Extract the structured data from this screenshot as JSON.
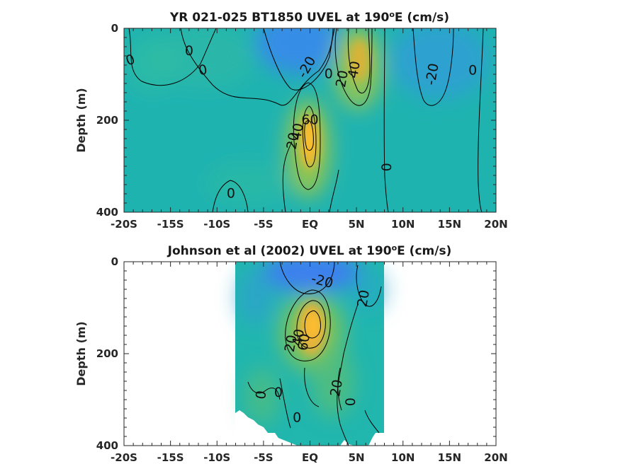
{
  "chart_data": [
    {
      "type": "heatmap",
      "title_pre": "YR 021-025 BT1850 UVEL at 190",
      "title_sup": "o",
      "title_post": "E (cm/s)",
      "xlabel": "",
      "ylabel": "Depth (m)",
      "xlim": [
        -20,
        20
      ],
      "ylim": [
        0,
        400
      ],
      "y_reversed": true,
      "x_ticks": [
        -20,
        -15,
        -10,
        -5,
        0,
        5,
        10,
        15,
        20
      ],
      "x_tick_labels": [
        "-20S",
        "-15S",
        "-10S",
        "-5S",
        "EQ",
        "5N",
        "10N",
        "15N",
        "20N"
      ],
      "y_ticks": [
        0,
        200,
        400
      ],
      "y_tick_labels": [
        "0",
        "200",
        "400"
      ],
      "features": [
        {
          "kind": "jet",
          "lat": 0,
          "depth": 200,
          "value": 65
        },
        {
          "kind": "jet",
          "lat": 5.5,
          "depth": 80,
          "value": 45
        },
        {
          "kind": "westward",
          "lat": 0,
          "depth": 20,
          "value": -30
        },
        {
          "kind": "westward",
          "lat": 12,
          "depth": 80,
          "value": -20
        }
      ],
      "contour_labels": [
        {
          "text": "0",
          "lat": -19.3,
          "depth": 70,
          "rot": -20
        },
        {
          "text": "0",
          "lat": -13,
          "depth": 50,
          "rot": 0
        },
        {
          "text": "0",
          "lat": -11.5,
          "depth": 92,
          "rot": -10
        },
        {
          "text": "-20",
          "lat": -0.3,
          "depth": 85,
          "rot": -60
        },
        {
          "text": "0",
          "lat": 2,
          "depth": 100,
          "rot": 0
        },
        {
          "text": "20",
          "lat": 3.5,
          "depth": 110,
          "rot": -80
        },
        {
          "text": "40",
          "lat": 4.8,
          "depth": 90,
          "rot": -80
        },
        {
          "text": "60",
          "lat": 0,
          "depth": 200,
          "rot": 0
        },
        {
          "text": "40",
          "lat": -1.3,
          "depth": 225,
          "rot": -80
        },
        {
          "text": "20",
          "lat": -1.8,
          "depth": 245,
          "rot": -80
        },
        {
          "text": "-20",
          "lat": 13.2,
          "depth": 100,
          "rot": -80
        },
        {
          "text": "0",
          "lat": 17.5,
          "depth": 92,
          "rot": 0
        },
        {
          "text": "0",
          "lat": 8.3,
          "depth": 302,
          "rot": -90
        },
        {
          "text": "0",
          "lat": -8.5,
          "depth": 360,
          "rot": 0
        }
      ]
    },
    {
      "type": "heatmap",
      "title_pre": "Johnson et al (2002) UVEL at 190",
      "title_sup": "o",
      "title_post": "E (cm/s)",
      "xlabel": "",
      "ylabel": "Depth (m)",
      "xlim": [
        -20,
        20
      ],
      "ylim": [
        0,
        400
      ],
      "y_reversed": true,
      "data_lat_range": [
        -8,
        8
      ],
      "x_ticks": [
        -20,
        -15,
        -10,
        -5,
        0,
        5,
        10,
        15,
        20
      ],
      "x_tick_labels": [
        "-20S",
        "-15S",
        "-10S",
        "-5S",
        "EQ",
        "5N",
        "10N",
        "15N",
        "20N"
      ],
      "y_ticks": [
        0,
        200,
        400
      ],
      "y_tick_labels": [
        "0",
        "200",
        "400"
      ],
      "features": [
        {
          "kind": "jet",
          "lat": 0.3,
          "depth": 150,
          "value": 75
        },
        {
          "kind": "westward",
          "lat": 0.5,
          "depth": 30,
          "value": -35
        }
      ],
      "contour_labels": [
        {
          "text": "-20",
          "lat": 1.3,
          "depth": 43,
          "rot": 15
        },
        {
          "text": "20",
          "lat": 5.8,
          "depth": 80,
          "rot": -80
        },
        {
          "text": "20",
          "lat": -2,
          "depth": 178,
          "rot": -80
        },
        {
          "text": "40",
          "lat": -1.2,
          "depth": 165,
          "rot": -80
        },
        {
          "text": "60",
          "lat": -0.6,
          "depth": 175,
          "rot": -80
        },
        {
          "text": "20",
          "lat": 2.9,
          "depth": 275,
          "rot": -80
        },
        {
          "text": "0",
          "lat": -5.2,
          "depth": 290,
          "rot": -80
        },
        {
          "text": "0",
          "lat": -3.4,
          "depth": 285,
          "rot": 0
        },
        {
          "text": "0",
          "lat": 4.4,
          "depth": 305,
          "rot": -90
        },
        {
          "text": "0",
          "lat": -1.4,
          "depth": 340,
          "rot": 0
        }
      ]
    }
  ]
}
